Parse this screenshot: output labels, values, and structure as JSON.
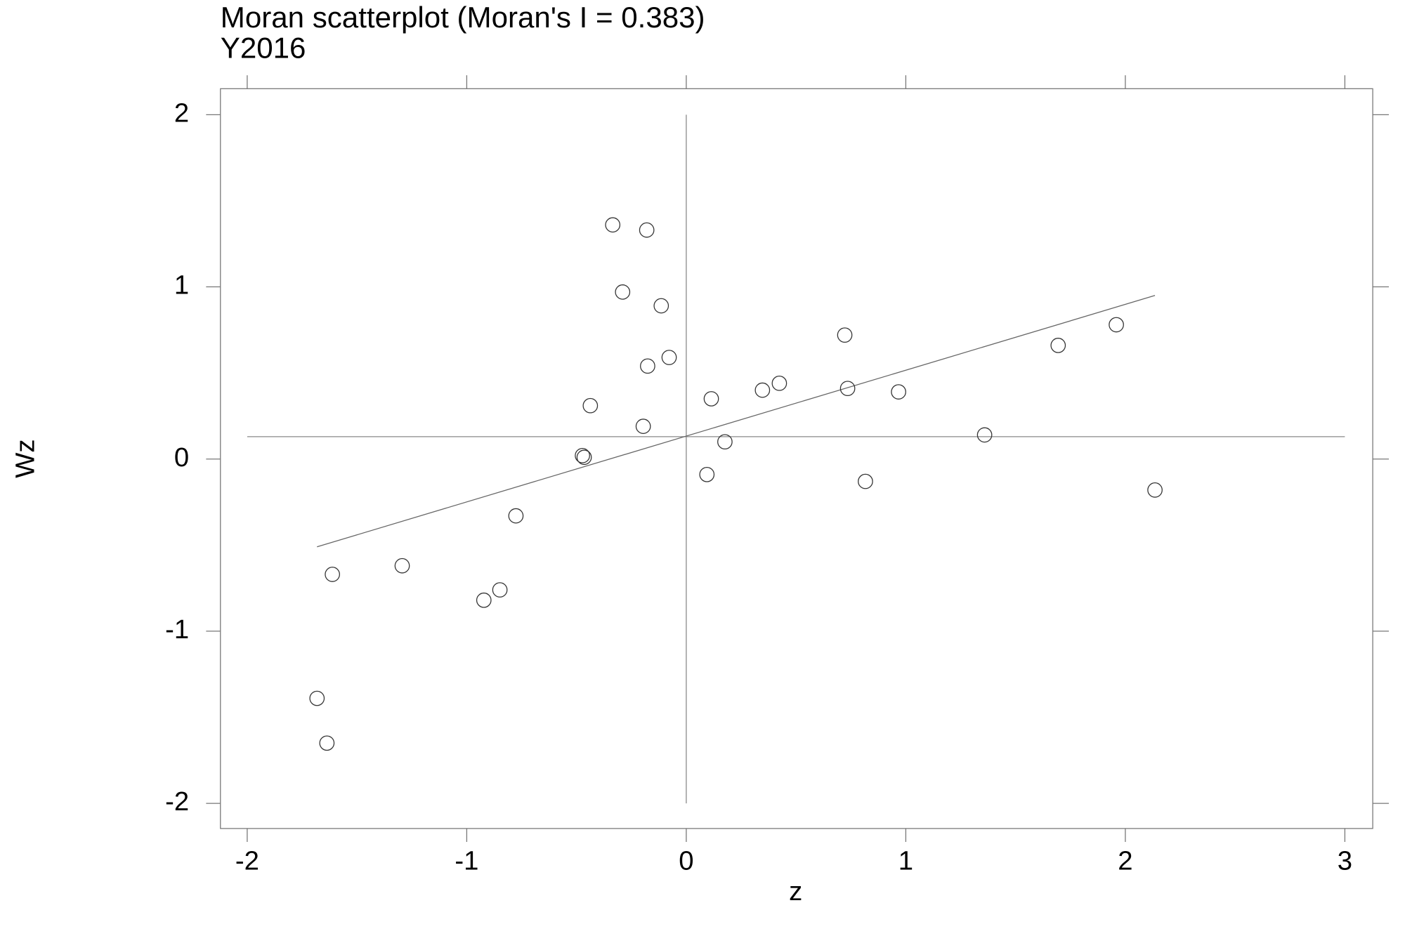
{
  "chart_data": {
    "type": "scatter",
    "title": "Moran scatterplot (Moran's I = 0.383)",
    "subtitle": "Y2016",
    "x_label": "z",
    "y_label": "Wz",
    "x": [
      -0.335,
      -0.18,
      -0.29,
      -0.114,
      -0.078,
      -0.176,
      -0.437,
      -0.196,
      -0.473,
      -0.465,
      -0.776,
      -1.294,
      -0.849,
      -0.922,
      -1.612,
      -1.682,
      -1.637,
      0.114,
      0.176,
      0.094,
      0.347,
      0.424,
      0.722,
      0.735,
      0.967,
      0.816,
      1.359,
      1.694,
      1.959,
      2.135
    ],
    "values": [
      1.36,
      1.33,
      0.97,
      0.89,
      0.59,
      0.54,
      0.31,
      0.19,
      0.02,
      0.01,
      -0.33,
      -0.62,
      -0.76,
      -0.82,
      -0.67,
      -1.39,
      -1.65,
      0.35,
      0.1,
      -0.09,
      0.4,
      0.44,
      0.72,
      0.41,
      0.39,
      -0.13,
      0.14,
      0.66,
      0.78,
      -0.18
    ],
    "color": "#333333",
    "hline": 0.13,
    "vline": 0,
    "regression": {
      "x": [
        -1.682,
        2.135
      ],
      "y": [
        -0.51,
        0.95
      ]
    },
    "xlim": [
      -2.122,
      3.127
    ],
    "ylim": [
      -2.146,
      2.151
    ],
    "xticks": [
      -2,
      -1,
      0,
      1,
      2,
      3
    ],
    "yticks": [
      -2,
      -1,
      0,
      1,
      2
    ]
  }
}
